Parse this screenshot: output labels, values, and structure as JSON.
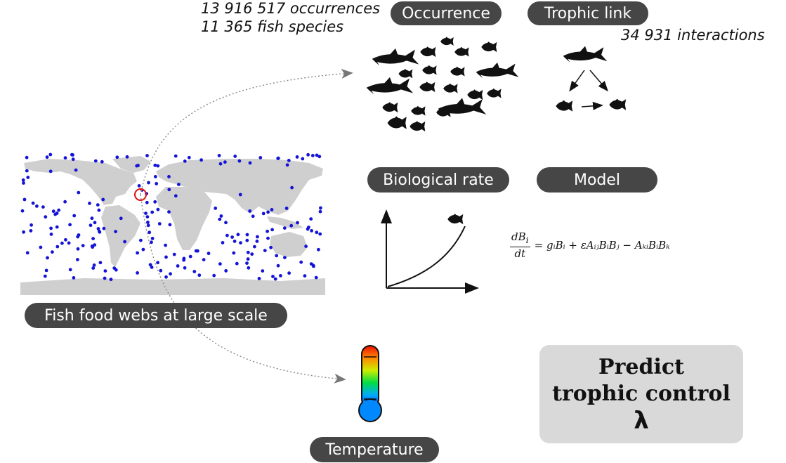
{
  "labels": {
    "occurrence": "Occurrence",
    "trophic_link": "Trophic link",
    "biological_rate": "Biological rate",
    "model": "Model",
    "fish_food_webs": "Fish food webs at large scale",
    "temperature": "Temperature"
  },
  "notes": {
    "occurrences": "13 916 517 occurrences",
    "species": "11 365 fish species",
    "interactions": "34 931 interactions"
  },
  "equation": {
    "num": "dB",
    "num_sub": "i",
    "den": "dt",
    "rhs": "= gᵢBᵢ + εAᵢⱼBᵢBⱼ − AₖᵢBᵢBₖ"
  },
  "predict": {
    "line1": "Predict",
    "line2": "trophic control",
    "symbol": "λ"
  },
  "colors": {
    "pill": "#464646",
    "land": "#cfcfcf",
    "points": "#1414d6",
    "highlight": "#e01010",
    "fish_rate_icon": "#9bb53a"
  },
  "icons": [
    "world-map",
    "fish-silhouette",
    "shark-silhouette",
    "thermometer-icon",
    "rate-curve"
  ]
}
